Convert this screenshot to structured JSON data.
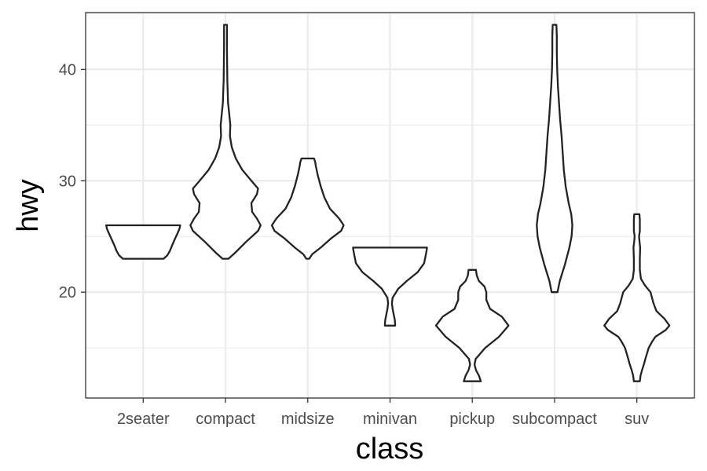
{
  "chart_data": {
    "type": "violin",
    "title": "",
    "xlabel": "class",
    "ylabel": "hwy",
    "ylim": [
      10.5,
      45.1
    ],
    "yticks": [
      20,
      30,
      40
    ],
    "grid": true,
    "colors": {
      "panel_border": "#333333",
      "grid": "#ebebeb",
      "violin_stroke": "#222222",
      "violin_fill": "#ffffff",
      "tick_text": "#4d4d4d"
    },
    "categories": [
      "2seater",
      "compact",
      "midsize",
      "minivan",
      "pickup",
      "subcompact",
      "suv"
    ],
    "violins": [
      {
        "class": "2seater",
        "min": 23,
        "max": 26,
        "profile": [
          [
            23,
            0.55
          ],
          [
            23.3,
            0.65
          ],
          [
            23.7,
            0.72
          ],
          [
            24.2,
            0.78
          ],
          [
            24.8,
            0.86
          ],
          [
            25.3,
            0.93
          ],
          [
            25.7,
            0.98
          ],
          [
            26,
            1.0
          ]
        ]
      },
      {
        "class": "compact",
        "min": 23,
        "max": 44,
        "profile": [
          [
            23,
            0.08
          ],
          [
            23.5,
            0.25
          ],
          [
            24.5,
            0.55
          ],
          [
            25.5,
            0.88
          ],
          [
            26,
            0.95
          ],
          [
            26.6,
            0.85
          ],
          [
            27.2,
            0.72
          ],
          [
            28,
            0.7
          ],
          [
            28.8,
            0.85
          ],
          [
            29.3,
            0.88
          ],
          [
            30,
            0.7
          ],
          [
            31,
            0.45
          ],
          [
            32,
            0.28
          ],
          [
            33,
            0.17
          ],
          [
            34,
            0.12
          ],
          [
            35,
            0.13
          ],
          [
            36,
            0.1
          ],
          [
            37,
            0.07
          ],
          [
            39,
            0.05
          ],
          [
            42,
            0.04
          ],
          [
            44,
            0.04
          ]
        ]
      },
      {
        "class": "midsize",
        "min": 23,
        "max": 32,
        "profile": [
          [
            23,
            0.04
          ],
          [
            23.4,
            0.12
          ],
          [
            24,
            0.35
          ],
          [
            24.8,
            0.62
          ],
          [
            25.5,
            0.9
          ],
          [
            26,
            0.97
          ],
          [
            26.6,
            0.85
          ],
          [
            27.5,
            0.6
          ],
          [
            28.5,
            0.45
          ],
          [
            29.5,
            0.35
          ],
          [
            30.5,
            0.27
          ],
          [
            31.3,
            0.22
          ],
          [
            31.7,
            0.2
          ],
          [
            32,
            0.17
          ]
        ]
      },
      {
        "class": "minivan",
        "min": 17,
        "max": 24,
        "profile": [
          [
            17,
            0.14
          ],
          [
            17.5,
            0.13
          ],
          [
            18,
            0.1
          ],
          [
            18.5,
            0.07
          ],
          [
            19,
            0.05
          ],
          [
            19.5,
            0.07
          ],
          [
            20.3,
            0.22
          ],
          [
            21,
            0.45
          ],
          [
            21.8,
            0.75
          ],
          [
            22.6,
            0.92
          ],
          [
            23.4,
            0.97
          ],
          [
            23.8,
            0.99
          ],
          [
            24,
            1.0
          ]
        ]
      },
      {
        "class": "pickup",
        "min": 12,
        "max": 22,
        "profile": [
          [
            12,
            0.23
          ],
          [
            12.5,
            0.18
          ],
          [
            13,
            0.1
          ],
          [
            13.5,
            0.06
          ],
          [
            14,
            0.09
          ],
          [
            15,
            0.35
          ],
          [
            16,
            0.72
          ],
          [
            17,
            0.98
          ],
          [
            17.8,
            0.8
          ],
          [
            18.5,
            0.48
          ],
          [
            19.3,
            0.38
          ],
          [
            20,
            0.38
          ],
          [
            20.5,
            0.33
          ],
          [
            21,
            0.18
          ],
          [
            21.5,
            0.12
          ],
          [
            22,
            0.1
          ]
        ]
      },
      {
        "class": "subcompact",
        "min": 20,
        "max": 44,
        "profile": [
          [
            20,
            0.08
          ],
          [
            21,
            0.14
          ],
          [
            22.5,
            0.28
          ],
          [
            24,
            0.4
          ],
          [
            25,
            0.46
          ],
          [
            26,
            0.48
          ],
          [
            27,
            0.45
          ],
          [
            28,
            0.38
          ],
          [
            29.5,
            0.3
          ],
          [
            31,
            0.25
          ],
          [
            32.5,
            0.22
          ],
          [
            34,
            0.19
          ],
          [
            35.5,
            0.15
          ],
          [
            37,
            0.12
          ],
          [
            38.5,
            0.09
          ],
          [
            40,
            0.07
          ],
          [
            41.5,
            0.06
          ],
          [
            43,
            0.06
          ],
          [
            44,
            0.05
          ]
        ]
      },
      {
        "class": "suv",
        "min": 12,
        "max": 27,
        "profile": [
          [
            12,
            0.08
          ],
          [
            12.5,
            0.1
          ],
          [
            13,
            0.14
          ],
          [
            13.5,
            0.19
          ],
          [
            14,
            0.23
          ],
          [
            15,
            0.32
          ],
          [
            15.6,
            0.42
          ],
          [
            16,
            0.5
          ],
          [
            16.6,
            0.78
          ],
          [
            17,
            0.88
          ],
          [
            17.6,
            0.75
          ],
          [
            18.3,
            0.53
          ],
          [
            19,
            0.45
          ],
          [
            20,
            0.37
          ],
          [
            20.6,
            0.22
          ],
          [
            21.2,
            0.11
          ],
          [
            22,
            0.08
          ],
          [
            23,
            0.08
          ],
          [
            24,
            0.09
          ],
          [
            24.6,
            0.07
          ],
          [
            25,
            0.06
          ],
          [
            25.5,
            0.08
          ],
          [
            26,
            0.08
          ],
          [
            26.5,
            0.08
          ],
          [
            27,
            0.07
          ]
        ]
      }
    ]
  }
}
